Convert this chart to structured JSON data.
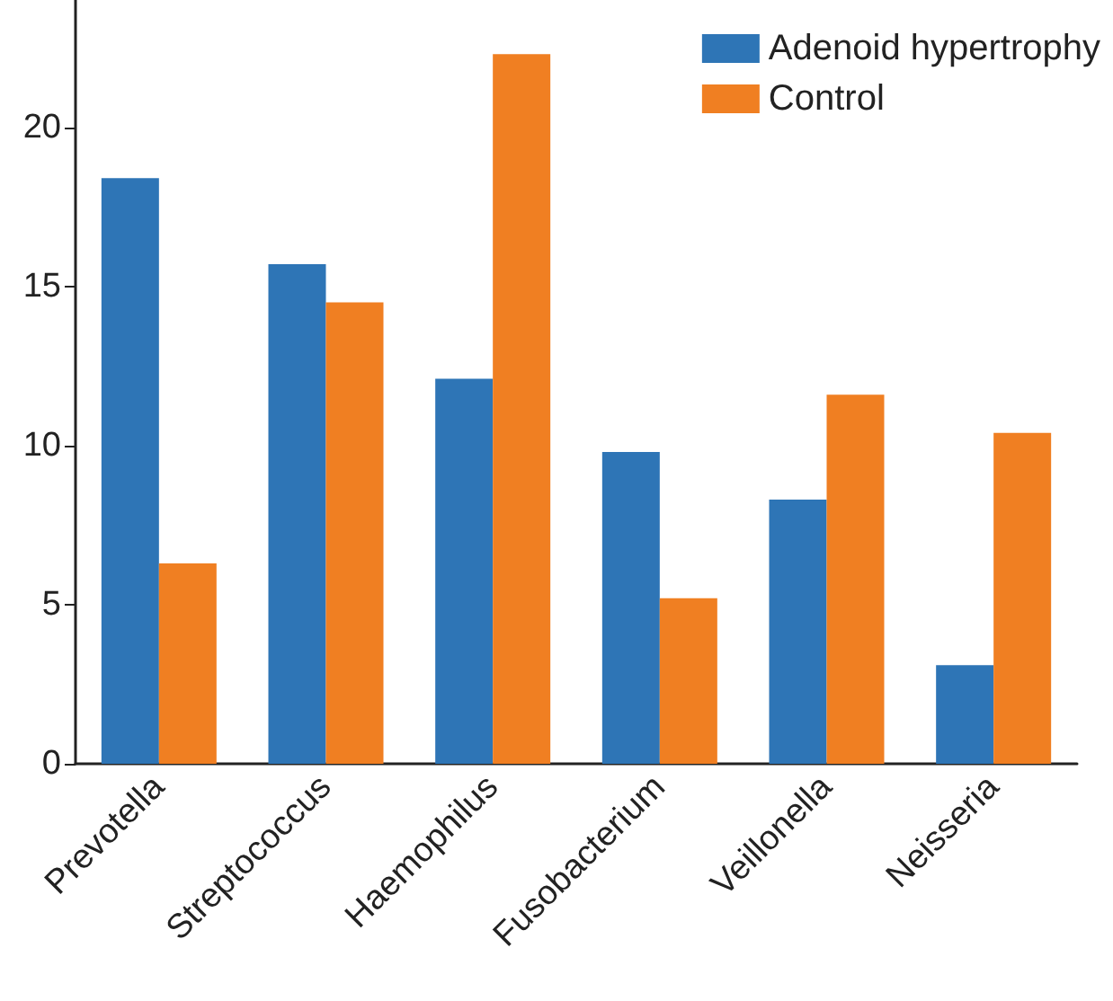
{
  "chart_data": {
    "type": "bar",
    "categories": [
      "Prevotella",
      "Streptococcus",
      "Haemophilus",
      "Fusobacterium",
      "Veillonella",
      "Neisseria"
    ],
    "series": [
      {
        "name": "Adenoid hypertrophy",
        "color": "#2e75b6",
        "values": [
          18.4,
          15.7,
          12.1,
          9.8,
          8.3,
          3.1
        ]
      },
      {
        "name": "Control",
        "color": "#f07f22",
        "values": [
          6.3,
          14.5,
          22.3,
          5.2,
          11.6,
          10.4
        ]
      }
    ],
    "ylim": [
      0,
      24
    ],
    "yticks": [
      0,
      5,
      10,
      15,
      20
    ],
    "grid": false,
    "legend": "top right"
  }
}
